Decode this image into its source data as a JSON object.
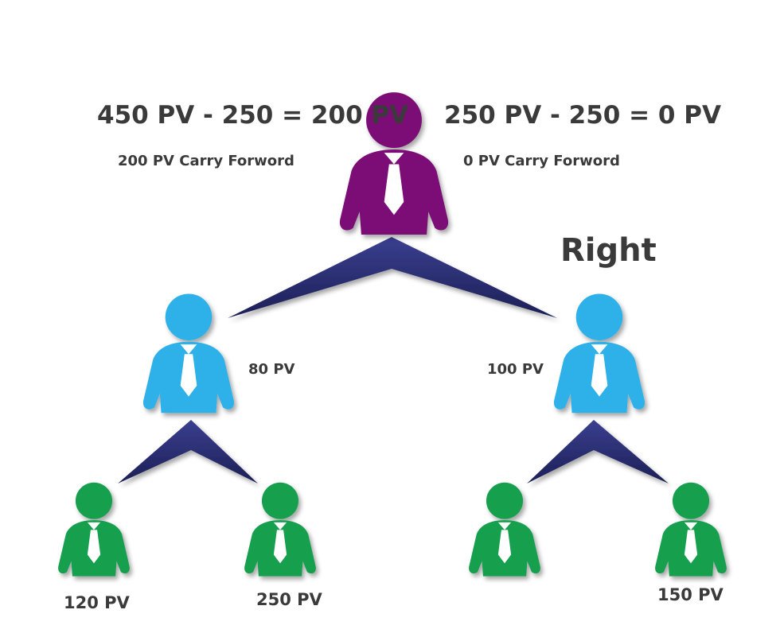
{
  "root": {
    "left_equation": "450 PV - 250 = 200 PV",
    "right_equation": "250 PV - 250 = 0 PV",
    "left_carry": "200 PV Carry Forword",
    "right_carry": "0 PV Carry Forword",
    "color": "#7b0e76"
  },
  "side_label": "Right",
  "level1": {
    "left_pv": "80 PV",
    "right_pv": "100 PV",
    "color": "#2fb0e8"
  },
  "level2": {
    "pv_1": "120 PV",
    "pv_2": "250 PV",
    "pv_4": "150 PV",
    "color": "#13a04e"
  },
  "connector_color": "#252a6e",
  "icons": [
    "person-icon"
  ]
}
